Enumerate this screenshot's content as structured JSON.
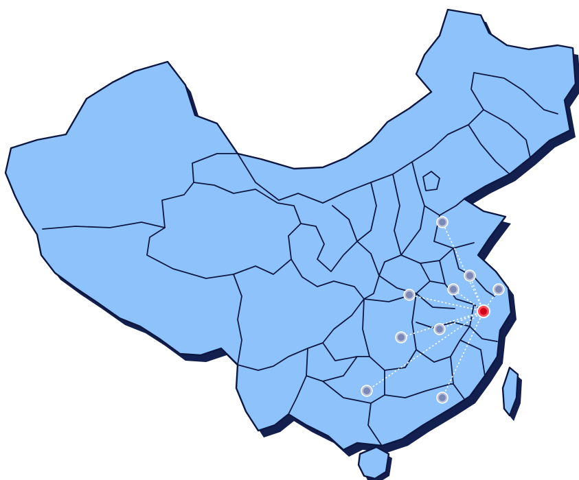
{
  "map": {
    "region": "China",
    "colors": {
      "land": "#8ec2fb",
      "border": "#0b1740",
      "shadow": "#13204f",
      "route": "#ffffff",
      "city_marker": "#7c88b5",
      "hub_marker": "#d4001a"
    },
    "hub": {
      "id": "hub",
      "color": "#d4001a"
    },
    "destinations": [
      {
        "id": "d1"
      },
      {
        "id": "d2"
      },
      {
        "id": "d3"
      },
      {
        "id": "d4"
      },
      {
        "id": "d5"
      },
      {
        "id": "d6"
      },
      {
        "id": "d7"
      },
      {
        "id": "d8"
      },
      {
        "id": "d9"
      }
    ]
  }
}
